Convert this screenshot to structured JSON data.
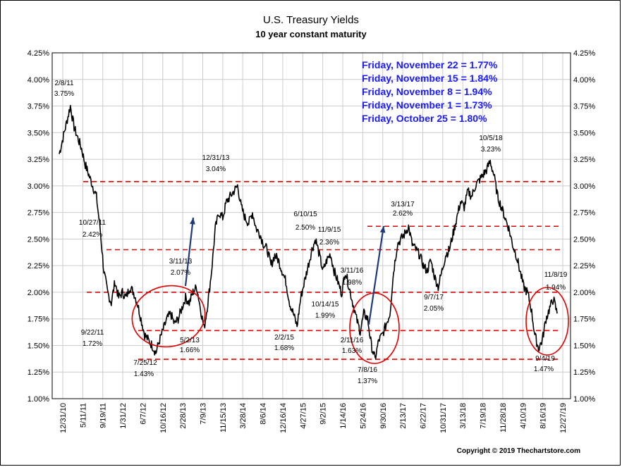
{
  "chart_data": {
    "type": "line",
    "title": "U.S. Treasury Yields",
    "subtitle": "10 year constant maturity",
    "ylim": [
      1.0,
      4.25
    ],
    "yticks": [
      "1.00%",
      "1.25%",
      "1.50%",
      "1.75%",
      "2.00%",
      "2.25%",
      "2.50%",
      "2.75%",
      "3.00%",
      "3.25%",
      "3.50%",
      "3.75%",
      "4.00%",
      "4.25%"
    ],
    "xticks": [
      "12/31/10",
      "5/11/11",
      "9/19/11",
      "1/31/12",
      "6/7/12",
      "10/16/12",
      "2/28/13",
      "7/9/13",
      "11/15/13",
      "3/28/14",
      "8/6/14",
      "12/16/14",
      "4/27/15",
      "9/2/15",
      "1/14/16",
      "5/24/16",
      "9/30/16",
      "2/13/17",
      "6/22/17",
      "10/31/17",
      "3/13/18",
      "7/19/18",
      "11/28/18",
      "4/10/19",
      "8/16/19",
      "12/27/19"
    ],
    "grid": true,
    "series": [
      {
        "values": [
          3.3,
          3.45,
          3.6,
          3.75,
          3.55,
          3.45,
          3.35,
          3.2,
          3.1,
          3.0,
          2.9,
          2.6,
          2.2,
          2.0,
          1.9,
          2.1,
          1.95,
          2.0,
          1.95,
          2.05,
          2.0,
          1.9,
          1.75,
          1.6,
          1.55,
          1.5,
          1.43,
          1.55,
          1.65,
          1.75,
          1.8,
          1.7,
          1.75,
          1.85,
          1.95,
          1.9,
          2.0,
          2.05,
          1.85,
          1.66,
          1.9,
          2.2,
          2.6,
          2.75,
          2.7,
          2.85,
          2.9,
          2.95,
          3.0,
          2.8,
          2.7,
          2.65,
          2.75,
          2.6,
          2.55,
          2.45,
          2.4,
          2.25,
          2.35,
          2.3,
          2.2,
          2.1,
          1.9,
          1.8,
          1.68,
          1.95,
          2.1,
          2.25,
          2.4,
          2.5,
          2.35,
          2.2,
          2.3,
          2.36,
          2.2,
          2.1,
          1.99,
          2.2,
          2.05,
          1.9,
          1.75,
          1.63,
          1.8,
          1.75,
          1.5,
          1.37,
          1.55,
          1.6,
          1.7,
          1.8,
          2.2,
          2.45,
          2.5,
          2.55,
          2.62,
          2.45,
          2.4,
          2.35,
          2.25,
          2.2,
          2.3,
          2.15,
          2.05,
          2.2,
          2.35,
          2.4,
          2.55,
          2.7,
          2.85,
          2.8,
          2.95,
          2.9,
          3.0,
          3.05,
          3.1,
          3.15,
          3.23,
          3.1,
          2.9,
          2.8,
          2.7,
          2.6,
          2.45,
          2.35,
          2.2,
          2.05,
          2.0,
          1.85,
          1.6,
          1.47,
          1.55,
          1.75,
          1.85,
          1.94,
          1.8
        ]
      }
    ],
    "series_range": {
      "x_start": "12/31/10",
      "x_end": "11/22/19"
    },
    "reference_lines": [
      3.04,
      2.62,
      2.4,
      2.0,
      1.64,
      1.37
    ],
    "annotations": [
      {
        "date": "2/8/11",
        "value": "3.75%"
      },
      {
        "date": "10/27/11",
        "value": "2.42%"
      },
      {
        "date": "9/22/11",
        "value": "1.72%"
      },
      {
        "date": "7/25/12",
        "value": "1.43%"
      },
      {
        "date": "3/11/13",
        "value": "2.07%"
      },
      {
        "date": "5/2/13",
        "value": "1.66%"
      },
      {
        "date": "12/31/13",
        "value": "3.04%"
      },
      {
        "date": "2/2/15",
        "value": "1.68%"
      },
      {
        "date": "6/10/15",
        "value": "2.50%"
      },
      {
        "date": "11/9/15",
        "value": "2.36%"
      },
      {
        "date": "10/14/15",
        "value": "1.99%"
      },
      {
        "date": "3/11/16",
        "value": "1.98%"
      },
      {
        "date": "2/11/16",
        "value": "1.63%"
      },
      {
        "date": "7/8/16",
        "value": "1.37%"
      },
      {
        "date": "3/13/17",
        "value": "2.62%"
      },
      {
        "date": "9/7/17",
        "value": "2.05%"
      },
      {
        "date": "10/5/18",
        "value": "3.23%"
      },
      {
        "date": "11/8/19",
        "value": "1.94%"
      },
      {
        "date": "9/4/19",
        "value": "1.47%"
      }
    ],
    "legend_lines": [
      "Friday, November 22 = 1.77%",
      "Friday, November 15 = 1.84%",
      "Friday, November 8 = 1.94%",
      "Friday, November 1 = 1.73%",
      "Friday, October 25 = 1.80%"
    ],
    "legend_placement": "top-right",
    "legend_color": "#1a1aff",
    "line_color": "#000000",
    "ref_line_color": "#e00000",
    "circle_color": "#e00000",
    "arrow_color": "#1f3a7a",
    "copyright": "Copyright © 2019 Thechartstore.com"
  }
}
